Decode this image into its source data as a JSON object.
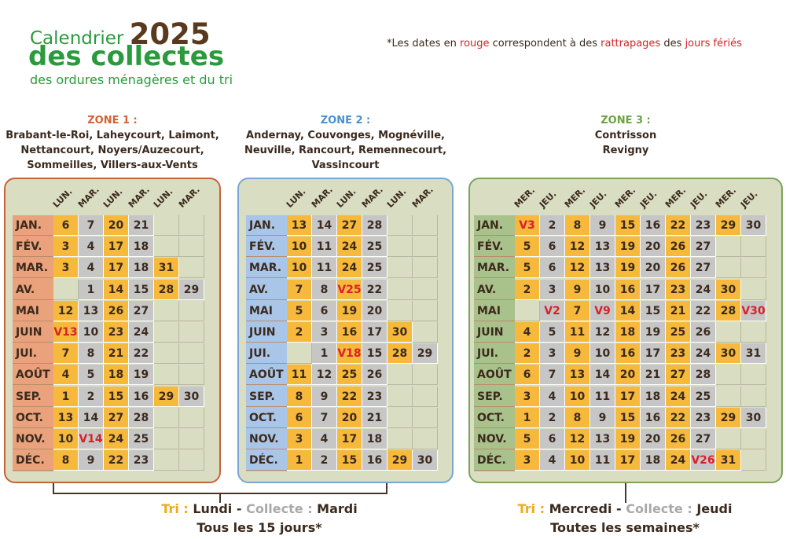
{
  "header": {
    "title_word": "Calendrier",
    "year": "2025",
    "title_line2": "des collectes",
    "subtitle": "des ordures ménagères et du tri"
  },
  "note": [
    "*Les dates en ",
    "rouge",
    " correspondent à des ",
    "rattrapages",
    " des ",
    "jours fériés"
  ],
  "zones": [
    {
      "label": "ZONE 1 :",
      "communes": [
        "Brabant-le-Roi, Laheycourt, Laimont,",
        "Nettancourt, Noyers/Auzecourt,",
        "Sommeilles, Villers-aux-Vents"
      ],
      "columns": [
        "LUN.",
        "MAR.",
        "LUN.",
        "MAR.",
        "LUN.",
        "MAR."
      ],
      "rows": [
        {
          "month": "JAN.",
          "days": [
            "6",
            "7",
            "20",
            "21"
          ]
        },
        {
          "month": "FÉV.",
          "days": [
            "3",
            "4",
            "17",
            "18"
          ]
        },
        {
          "month": "MAR.",
          "days": [
            "3",
            "4",
            "17",
            "18",
            "31"
          ]
        },
        {
          "month": "AV.",
          "days": [
            null,
            "1",
            "14",
            "15",
            "28",
            "29"
          ]
        },
        {
          "month": "MAI",
          "days": [
            "12",
            "13",
            "26",
            "27"
          ]
        },
        {
          "month": "JUIN",
          "days": [
            "V13",
            "10",
            "23",
            "24"
          ]
        },
        {
          "month": "JUI.",
          "days": [
            "7",
            "8",
            "21",
            "22"
          ]
        },
        {
          "month": "AOÛT",
          "days": [
            "4",
            "5",
            "18",
            "19"
          ]
        },
        {
          "month": "SEP.",
          "days": [
            "1",
            "2",
            "15",
            "16",
            "29",
            "30"
          ]
        },
        {
          "month": "OCT.",
          "days": [
            "13",
            "14",
            "27",
            "28"
          ]
        },
        {
          "month": "NOV.",
          "days": [
            "10",
            "V14",
            "24",
            "25"
          ]
        },
        {
          "month": "DÉC.",
          "days": [
            "8",
            "9",
            "22",
            "23"
          ]
        }
      ]
    },
    {
      "label": "ZONE 2 :",
      "communes": [
        "Andernay, Couvonges, Mognéville,",
        "Neuville, Rancourt, Remennecourt,",
        "Vassincourt"
      ],
      "columns": [
        "LUN.",
        "MAR.",
        "LUN.",
        "MAR.",
        "LUN.",
        "MAR."
      ],
      "rows": [
        {
          "month": "JAN.",
          "days": [
            "13",
            "14",
            "27",
            "28"
          ]
        },
        {
          "month": "FÉV.",
          "days": [
            "10",
            "11",
            "24",
            "25"
          ]
        },
        {
          "month": "MAR.",
          "days": [
            "10",
            "11",
            "24",
            "25"
          ]
        },
        {
          "month": "AV.",
          "days": [
            "7",
            "8",
            "V25",
            "22"
          ]
        },
        {
          "month": "MAI",
          "days": [
            "5",
            "6",
            "19",
            "20"
          ]
        },
        {
          "month": "JUIN",
          "days": [
            "2",
            "3",
            "16",
            "17",
            "30"
          ]
        },
        {
          "month": "JUI.",
          "days": [
            null,
            "1",
            "V18",
            "15",
            "28",
            "29"
          ]
        },
        {
          "month": "AOÛT",
          "days": [
            "11",
            "12",
            "25",
            "26"
          ]
        },
        {
          "month": "SEP.",
          "days": [
            "8",
            "9",
            "22",
            "23"
          ]
        },
        {
          "month": "OCT.",
          "days": [
            "6",
            "7",
            "20",
            "21"
          ]
        },
        {
          "month": "NOV.",
          "days": [
            "3",
            "4",
            "17",
            "18"
          ]
        },
        {
          "month": "DÉC.",
          "days": [
            "1",
            "2",
            "15",
            "16",
            "29",
            "30"
          ]
        }
      ]
    },
    {
      "label": "ZONE 3 :",
      "communes": [
        "Contrisson",
        "Revigny"
      ],
      "columns": [
        "MER.",
        "JEU.",
        "MER.",
        "JEU.",
        "MER.",
        "JEU.",
        "MER.",
        "JEU.",
        "MER.",
        "JEU."
      ],
      "rows": [
        {
          "month": "JAN.",
          "days": [
            "V3",
            "2",
            "8",
            "9",
            "15",
            "16",
            "22",
            "23",
            "29",
            "30"
          ]
        },
        {
          "month": "FÉV.",
          "days": [
            "5",
            "6",
            "12",
            "13",
            "19",
            "20",
            "26",
            "27"
          ]
        },
        {
          "month": "MAR.",
          "days": [
            "5",
            "6",
            "12",
            "13",
            "19",
            "20",
            "26",
            "27"
          ]
        },
        {
          "month": "AV.",
          "days": [
            "2",
            "3",
            "9",
            "10",
            "16",
            "17",
            "23",
            "24",
            "30"
          ]
        },
        {
          "month": "MAI",
          "days": [
            null,
            "V2",
            "7",
            "V9",
            "14",
            "15",
            "21",
            "22",
            "28",
            "V30"
          ]
        },
        {
          "month": "JUIN",
          "days": [
            "4",
            "5",
            "11",
            "12",
            "18",
            "19",
            "25",
            "26"
          ]
        },
        {
          "month": "JUI.",
          "days": [
            "2",
            "3",
            "9",
            "10",
            "16",
            "17",
            "23",
            "24",
            "30",
            "31"
          ]
        },
        {
          "month": "AOÛT",
          "days": [
            "6",
            "7",
            "13",
            "14",
            "20",
            "21",
            "27",
            "28"
          ]
        },
        {
          "month": "SEP.",
          "days": [
            "3",
            "4",
            "10",
            "11",
            "17",
            "18",
            "24",
            "25"
          ]
        },
        {
          "month": "OCT.",
          "days": [
            "1",
            "2",
            "8",
            "9",
            "15",
            "16",
            "22",
            "23",
            "29",
            "30"
          ]
        },
        {
          "month": "NOV.",
          "days": [
            "5",
            "6",
            "12",
            "13",
            "19",
            "20",
            "26",
            "27"
          ]
        },
        {
          "month": "DÉC.",
          "days": [
            "3",
            "4",
            "10",
            "11",
            "17",
            "18",
            "24",
            "V26",
            "31"
          ]
        }
      ]
    }
  ],
  "footers": [
    {
      "line1": [
        "Tri :",
        "Lundi",
        "-",
        "Collecte :",
        "Mardi"
      ],
      "line2": "Tous les 15 jours*"
    },
    {
      "line1": [
        "Tri :",
        "Mercredi",
        "-",
        "Collecte :",
        "Jeudi"
      ],
      "line2": "Toutes les semaines*"
    }
  ]
}
